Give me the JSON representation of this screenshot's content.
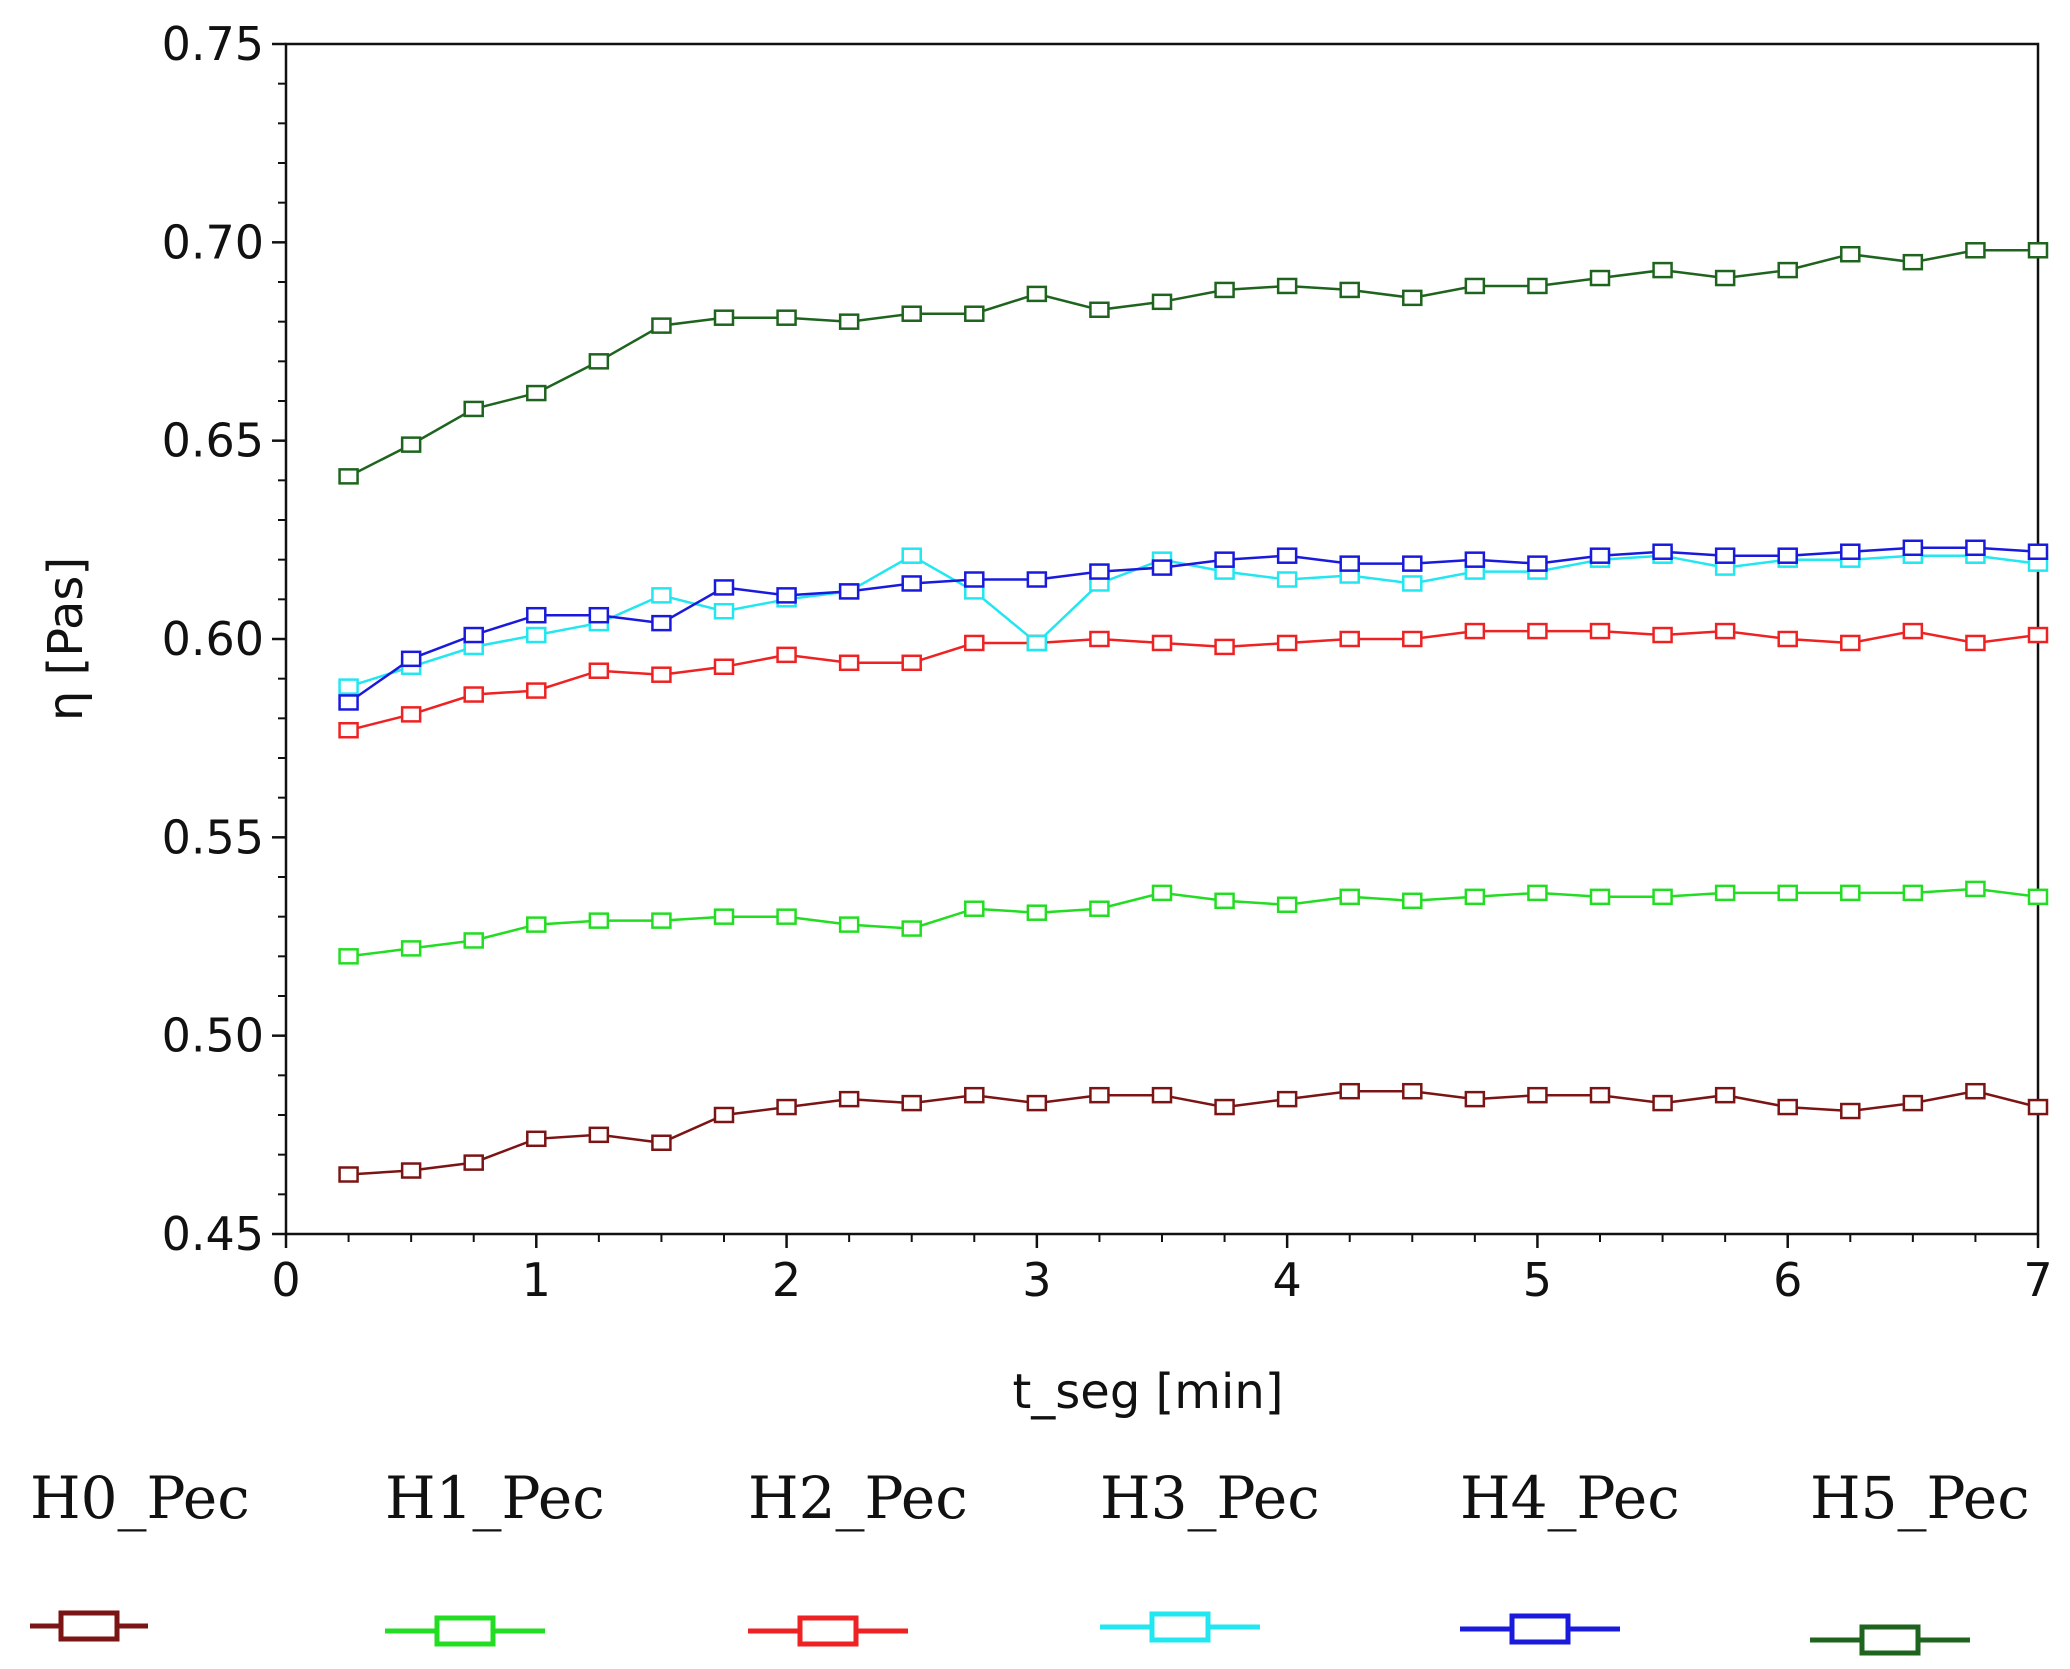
{
  "chart_data": {
    "type": "line",
    "title": "",
    "xlabel": "t_seg [min]",
    "ylabel": "η [Pas]",
    "xlim": [
      0,
      7
    ],
    "ylim": [
      0.45,
      0.75
    ],
    "grid": false,
    "legend_position": "bottom",
    "x_ticks": [
      "0",
      "1",
      "2",
      "3",
      "4",
      "5",
      "6",
      "7"
    ],
    "y_ticks": [
      "0.45",
      "0.50",
      "0.55",
      "0.60",
      "0.65",
      "0.70",
      "0.75"
    ],
    "x": [
      0.25,
      0.5,
      0.75,
      1.0,
      1.25,
      1.5,
      1.75,
      2.0,
      2.25,
      2.5,
      2.75,
      3.0,
      3.25,
      3.5,
      3.75,
      4.0,
      4.25,
      4.5,
      4.75,
      5.0,
      5.25,
      5.5,
      5.75,
      6.0,
      6.25,
      6.5,
      6.75,
      7.0
    ],
    "series": [
      {
        "name": "H0_Pec",
        "color": "#7b1414",
        "values": [
          0.465,
          0.466,
          0.468,
          0.474,
          0.475,
          0.473,
          0.48,
          0.482,
          0.484,
          0.483,
          0.485,
          0.483,
          0.485,
          0.485,
          0.482,
          0.484,
          0.486,
          0.486,
          0.484,
          0.485,
          0.485,
          0.483,
          0.485,
          0.482,
          0.481,
          0.483,
          0.486,
          0.482
        ]
      },
      {
        "name": "H1_Pec",
        "color": "#22dd22",
        "values": [
          0.52,
          0.522,
          0.524,
          0.528,
          0.529,
          0.529,
          0.53,
          0.53,
          0.528,
          0.527,
          0.532,
          0.531,
          0.532,
          0.536,
          0.534,
          0.533,
          0.535,
          0.534,
          0.535,
          0.536,
          0.535,
          0.535,
          0.536,
          0.536,
          0.536,
          0.536,
          0.537,
          0.535
        ]
      },
      {
        "name": "H2_Pec",
        "color": "#ee2222",
        "values": [
          0.577,
          0.581,
          0.586,
          0.587,
          0.592,
          0.591,
          0.593,
          0.596,
          0.594,
          0.594,
          0.599,
          0.599,
          0.6,
          0.599,
          0.598,
          0.599,
          0.6,
          0.6,
          0.602,
          0.602,
          0.602,
          0.601,
          0.602,
          0.6,
          0.599,
          0.602,
          0.599,
          0.601
        ]
      },
      {
        "name": "H3_Pec",
        "color": "#22e6f0",
        "values": [
          0.588,
          0.593,
          0.598,
          0.601,
          0.604,
          0.611,
          0.607,
          0.61,
          0.612,
          0.621,
          0.612,
          0.599,
          0.614,
          0.62,
          0.617,
          0.615,
          0.616,
          0.614,
          0.617,
          0.617,
          0.62,
          0.621,
          0.618,
          0.62,
          0.62,
          0.621,
          0.621,
          0.619
        ]
      },
      {
        "name": "H4_Pec",
        "color": "#1a1adc",
        "values": [
          0.584,
          0.595,
          0.601,
          0.606,
          0.606,
          0.604,
          0.613,
          0.611,
          0.612,
          0.614,
          0.615,
          0.615,
          0.617,
          0.618,
          0.62,
          0.621,
          0.619,
          0.619,
          0.62,
          0.619,
          0.621,
          0.622,
          0.621,
          0.621,
          0.622,
          0.623,
          0.623,
          0.622
        ]
      },
      {
        "name": "H5_Pec",
        "color": "#1e641e",
        "values": [
          0.641,
          0.649,
          0.658,
          0.662,
          0.67,
          0.679,
          0.681,
          0.681,
          0.68,
          0.682,
          0.682,
          0.687,
          0.683,
          0.685,
          0.688,
          0.689,
          0.688,
          0.686,
          0.689,
          0.689,
          0.691,
          0.693,
          0.691,
          0.693,
          0.697,
          0.695,
          0.698,
          0.698
        ]
      }
    ]
  }
}
